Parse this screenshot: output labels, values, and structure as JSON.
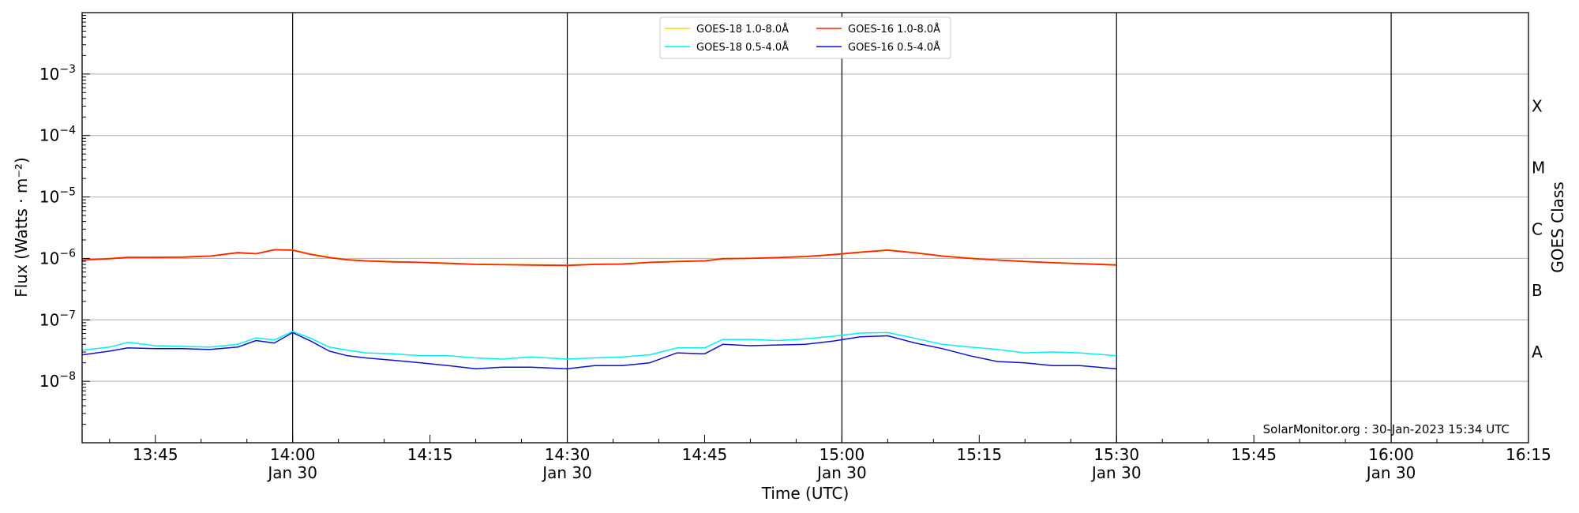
{
  "chart_data": {
    "type": "line",
    "ylabel": "Flux (Watts · m⁻²)",
    "xlabel": "Time (UTC)",
    "right_axis_label": "GOES Class",
    "credit": "SolarMonitor.org : 30-Jan-2023 15:34 UTC",
    "y_scale": "log",
    "ylim": [
      1e-09,
      0.01
    ],
    "xlim": [
      "13:37",
      "16:15"
    ],
    "grid": "horizontal at each decade",
    "legend_position": "top-center",
    "y_ticks": [
      {
        "value": 1e-08,
        "base": "10",
        "exp": "−8"
      },
      {
        "value": 1e-07,
        "base": "10",
        "exp": "−7"
      },
      {
        "value": 1e-06,
        "base": "10",
        "exp": "−6"
      },
      {
        "value": 1e-05,
        "base": "10",
        "exp": "−5"
      },
      {
        "value": 0.0001,
        "base": "10",
        "exp": "−4"
      },
      {
        "value": 0.001,
        "base": "10",
        "exp": "−3"
      }
    ],
    "x_ticks": [
      {
        "time": "13:45",
        "label": "13:45",
        "date": ""
      },
      {
        "time": "14:00",
        "label": "14:00",
        "date": "Jan 30"
      },
      {
        "time": "14:15",
        "label": "14:15",
        "date": ""
      },
      {
        "time": "14:30",
        "label": "14:30",
        "date": "Jan 30"
      },
      {
        "time": "14:45",
        "label": "14:45",
        "date": ""
      },
      {
        "time": "15:00",
        "label": "15:00",
        "date": "Jan 30"
      },
      {
        "time": "15:15",
        "label": "15:15",
        "date": ""
      },
      {
        "time": "15:30",
        "label": "15:30",
        "date": "Jan 30"
      },
      {
        "time": "15:45",
        "label": "15:45",
        "date": ""
      },
      {
        "time": "16:00",
        "label": "16:00",
        "date": "Jan 30"
      },
      {
        "time": "16:15",
        "label": "16:15",
        "date": ""
      }
    ],
    "vertical_lines": [
      "14:00",
      "14:30",
      "15:00",
      "15:30",
      "16:00"
    ],
    "goes_classes": [
      {
        "label": "A",
        "value": 3e-08
      },
      {
        "label": "B",
        "value": 3e-07
      },
      {
        "label": "C",
        "value": 3e-06
      },
      {
        "label": "M",
        "value": 3e-05
      },
      {
        "label": "X",
        "value": 0.0003
      }
    ],
    "x": [
      "13:37",
      "13:40",
      "13:42",
      "13:45",
      "13:48",
      "13:51",
      "13:54",
      "13:56",
      "13:58",
      "14:00",
      "14:02",
      "14:04",
      "14:06",
      "14:08",
      "14:11",
      "14:14",
      "14:17",
      "14:20",
      "14:23",
      "14:26",
      "14:30",
      "14:33",
      "14:36",
      "14:39",
      "14:42",
      "14:45",
      "14:47",
      "14:50",
      "14:53",
      "14:56",
      "14:59",
      "15:02",
      "15:05",
      "15:08",
      "15:11",
      "15:14",
      "15:17",
      "15:20",
      "15:23",
      "15:26",
      "15:30"
    ],
    "series": [
      {
        "name": "GOES-18 1.0-8.0Å",
        "color": "#ffd700",
        "values": [
          9.5e-07,
          1e-06,
          1.05e-06,
          1.05e-06,
          1.06e-06,
          1.1e-06,
          1.25e-06,
          1.2e-06,
          1.4e-06,
          1.38e-06,
          1.18e-06,
          1.05e-06,
          9.6e-07,
          9.2e-07,
          8.9e-07,
          8.7e-07,
          8.4e-07,
          8.1e-07,
          8e-07,
          7.9e-07,
          7.8e-07,
          8.1e-07,
          8.2e-07,
          8.7e-07,
          9e-07,
          9.2e-07,
          1e-06,
          1.01e-06,
          1.04e-06,
          1.08e-06,
          1.16e-06,
          1.28e-06,
          1.38e-06,
          1.25e-06,
          1.1e-06,
          1.02e-06,
          9.5e-07,
          9e-07,
          8.6e-07,
          8.3e-07,
          7.9e-07
        ]
      },
      {
        "name": "GOES-18 0.5-4.0Å",
        "color": "#00f0f0",
        "values": [
          3.2e-08,
          3.6e-08,
          4.3e-08,
          3.8e-08,
          3.7e-08,
          3.6e-08,
          4e-08,
          5.1e-08,
          4.7e-08,
          6.5e-08,
          5e-08,
          3.6e-08,
          3.2e-08,
          2.9e-08,
          2.8e-08,
          2.6e-08,
          2.6e-08,
          2.4e-08,
          2.3e-08,
          2.5e-08,
          2.3e-08,
          2.4e-08,
          2.5e-08,
          2.7e-08,
          3.5e-08,
          3.5e-08,
          4.8e-08,
          4.8e-08,
          4.6e-08,
          4.9e-08,
          5.4e-08,
          6.1e-08,
          6.2e-08,
          5e-08,
          4e-08,
          3.6e-08,
          3.3e-08,
          2.9e-08,
          3e-08,
          2.9e-08,
          2.6e-08
        ]
      },
      {
        "name": "GOES-16 1.0-8.0Å",
        "color": "#ff2200",
        "values": [
          9.4e-07,
          9.9e-07,
          1.04e-06,
          1.04e-06,
          1.05e-06,
          1.09e-06,
          1.24e-06,
          1.19e-06,
          1.38e-06,
          1.36e-06,
          1.16e-06,
          1.03e-06,
          9.5e-07,
          9.1e-07,
          8.8e-07,
          8.6e-07,
          8.3e-07,
          8e-07,
          7.9e-07,
          7.8e-07,
          7.7e-07,
          8e-07,
          8.1e-07,
          8.6e-07,
          8.9e-07,
          9.1e-07,
          9.9e-07,
          1e-06,
          1.03e-06,
          1.07e-06,
          1.15e-06,
          1.26e-06,
          1.36e-06,
          1.23e-06,
          1.09e-06,
          1e-06,
          9.4e-07,
          8.9e-07,
          8.5e-07,
          8.2e-07,
          7.8e-07
        ]
      },
      {
        "name": "GOES-16 0.5-4.0Å",
        "color": "#1010d0",
        "values": [
          2.7e-08,
          3.1e-08,
          3.5e-08,
          3.4e-08,
          3.4e-08,
          3.3e-08,
          3.6e-08,
          4.6e-08,
          4.2e-08,
          6.2e-08,
          4.5e-08,
          3.1e-08,
          2.6e-08,
          2.4e-08,
          2.2e-08,
          2e-08,
          1.8e-08,
          1.6e-08,
          1.7e-08,
          1.7e-08,
          1.6e-08,
          1.8e-08,
          1.8e-08,
          2e-08,
          2.9e-08,
          2.8e-08,
          4e-08,
          3.8e-08,
          3.9e-08,
          4e-08,
          4.5e-08,
          5.3e-08,
          5.5e-08,
          4.2e-08,
          3.4e-08,
          2.6e-08,
          2.1e-08,
          2e-08,
          1.8e-08,
          1.8e-08,
          1.6e-08
        ]
      }
    ]
  }
}
